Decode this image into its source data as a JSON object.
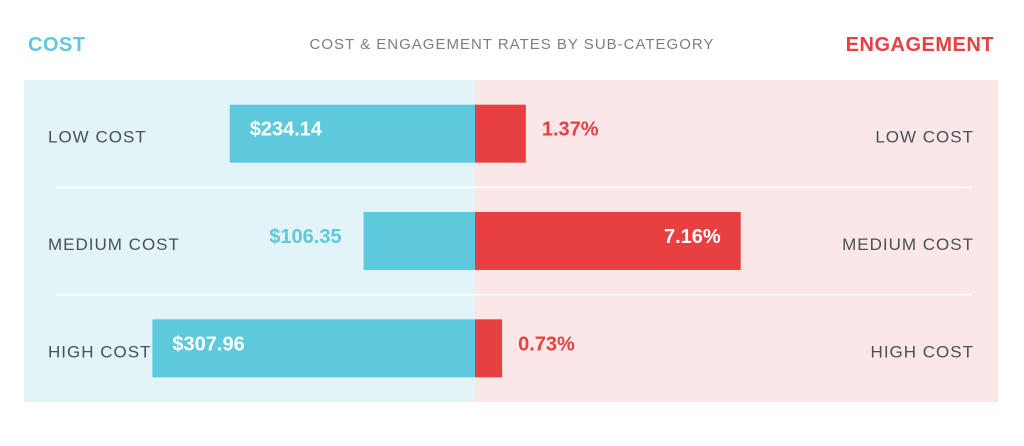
{
  "header": {
    "left_title": "COST",
    "center_title": "COST & ENGAGEMENT RATES BY SUB-CATEGORY",
    "right_title": "ENGAGEMENT"
  },
  "colors": {
    "cost_bar": "#5ec9dc",
    "cost_bg": "#e2f4f8",
    "engagement_bar": "#e84040",
    "engagement_bg": "#fbe6e8",
    "label_text": "#4a4f55",
    "divider": "#ffffff"
  },
  "chart_data": {
    "type": "bar",
    "title": "COST & ENGAGEMENT RATES BY SUB-CATEGORY",
    "layout": "diverging-horizontal",
    "categories": [
      "LOW COST",
      "MEDIUM COST",
      "HIGH COST"
    ],
    "series": [
      {
        "name": "COST",
        "side": "left",
        "values": [
          234.14,
          106.35,
          307.96
        ],
        "labels": [
          "$234.14",
          "$106.35",
          "$307.96"
        ],
        "max": 400
      },
      {
        "name": "ENGAGEMENT",
        "side": "right",
        "values": [
          1.37,
          7.16,
          0.73
        ],
        "labels": [
          "1.37%",
          "7.16%",
          "0.73%"
        ],
        "max": 13.5
      }
    ]
  }
}
